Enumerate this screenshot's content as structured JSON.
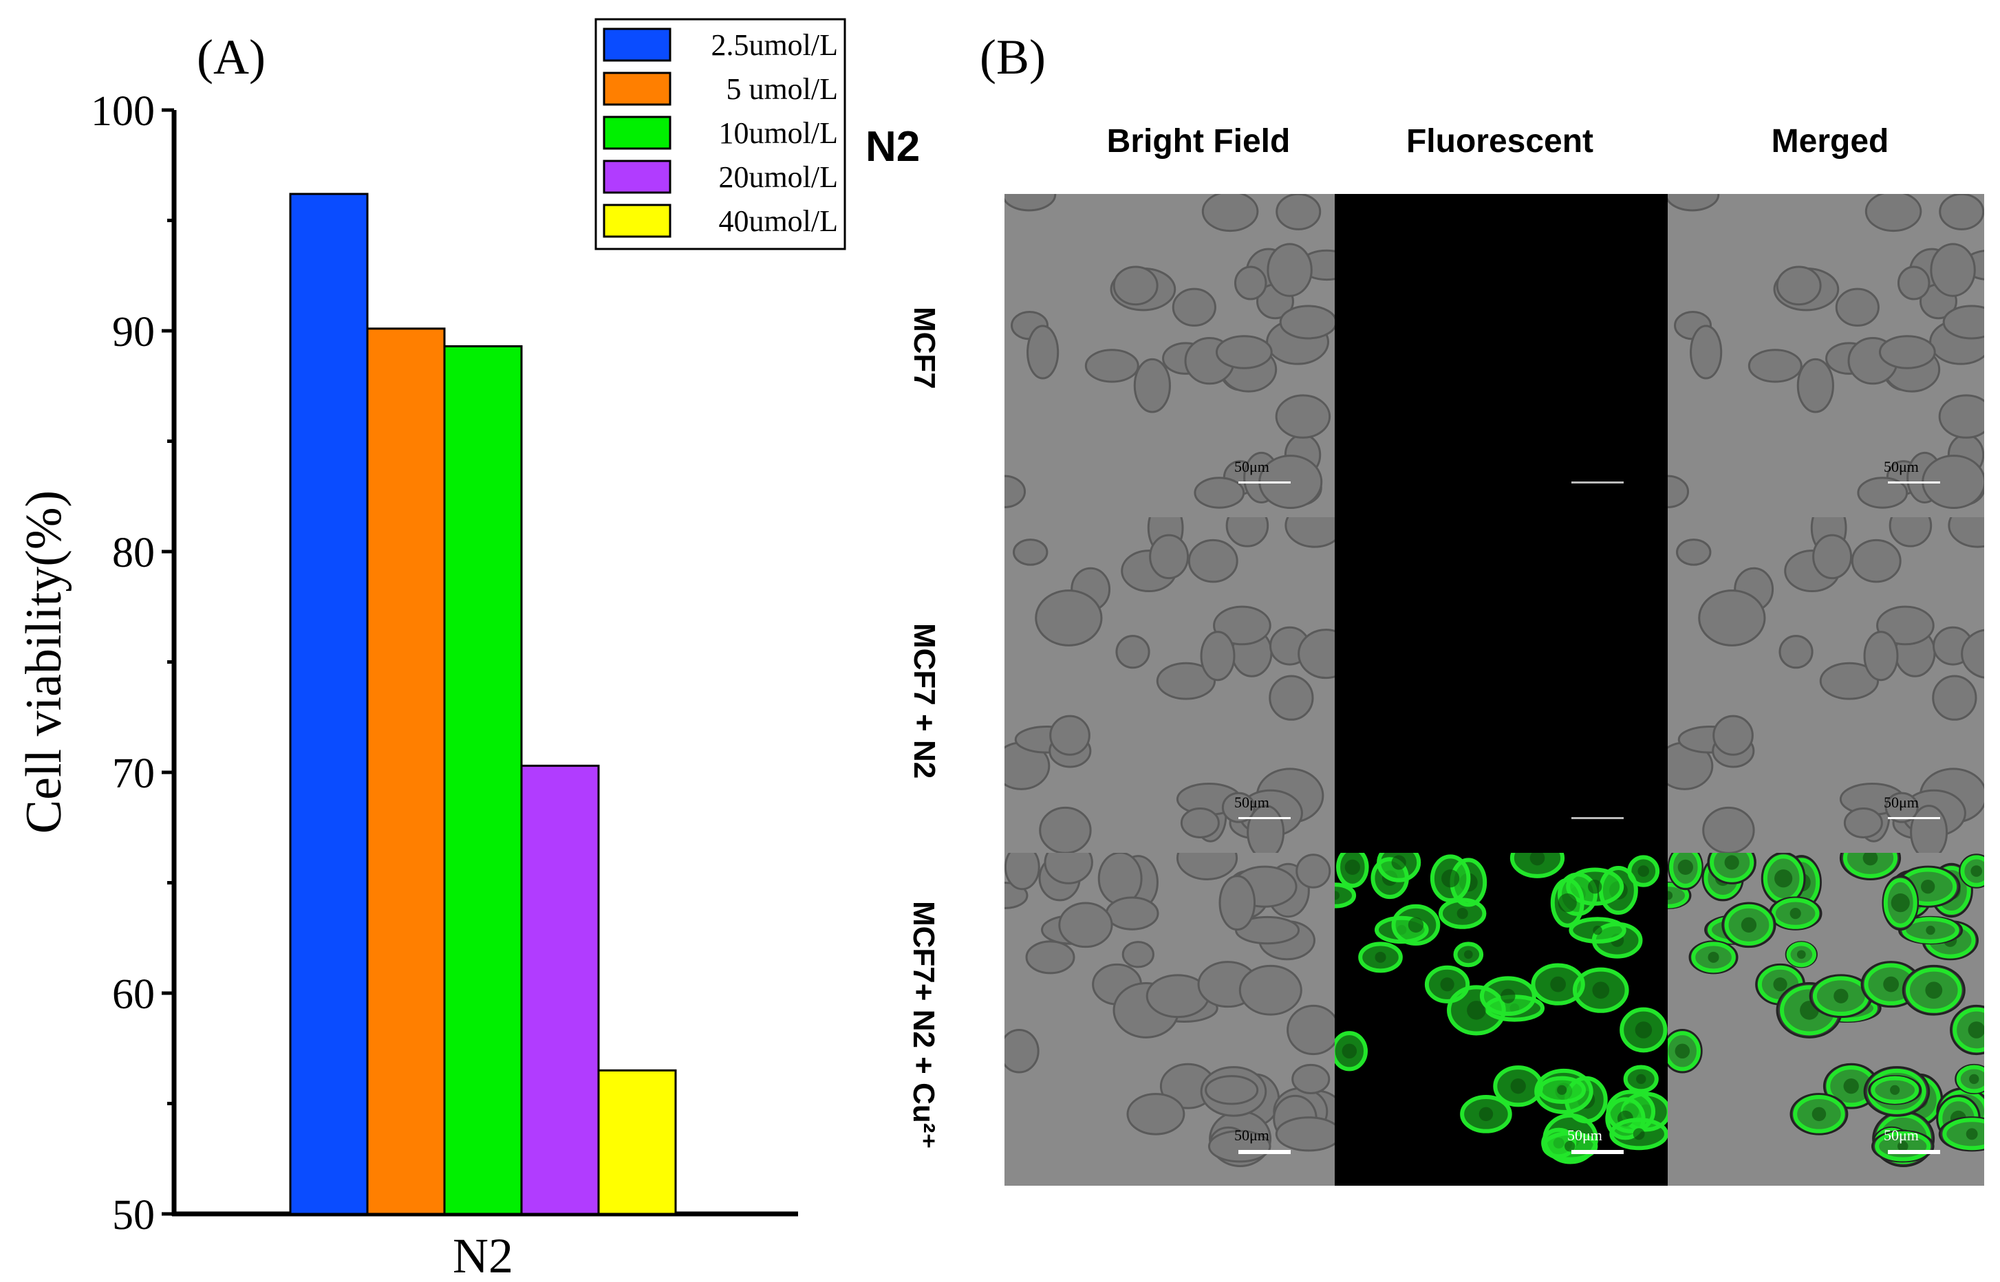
{
  "panels": {
    "a_label": "(A)",
    "b_label": "(B)"
  },
  "chart_data": {
    "type": "bar",
    "categories": [
      "N2"
    ],
    "series": [
      {
        "name": "2.5umol/L",
        "values": [
          96.2
        ],
        "color": "#0a4cff"
      },
      {
        "name": "5 umol/L",
        "values": [
          90.1
        ],
        "color": "#ff7f00"
      },
      {
        "name": "10umol/L",
        "values": [
          89.3
        ],
        "color": "#00f000"
      },
      {
        "name": "20umol/L",
        "values": [
          70.3
        ],
        "color": "#b13cff"
      },
      {
        "name": "40umol/L",
        "values": [
          56.5
        ],
        "color": "#ffff00"
      }
    ],
    "title": "",
    "xlabel": "N2",
    "ylabel": "Cell viability(%)",
    "ylim": [
      50,
      100
    ],
    "yticks": [
      50,
      60,
      70,
      80,
      90,
      100
    ],
    "grid": false,
    "legend_position": "top-right"
  },
  "microscopy": {
    "title": "N2",
    "columns": [
      "Bright Field",
      "Fluorescent",
      "Merged"
    ],
    "rows": [
      "MCF7",
      "MCF7 + N2",
      "MCF7+ N2 + Cu²⁺"
    ],
    "scale_bar_label": "50μm",
    "fluorescence_color": "#22e62a"
  }
}
